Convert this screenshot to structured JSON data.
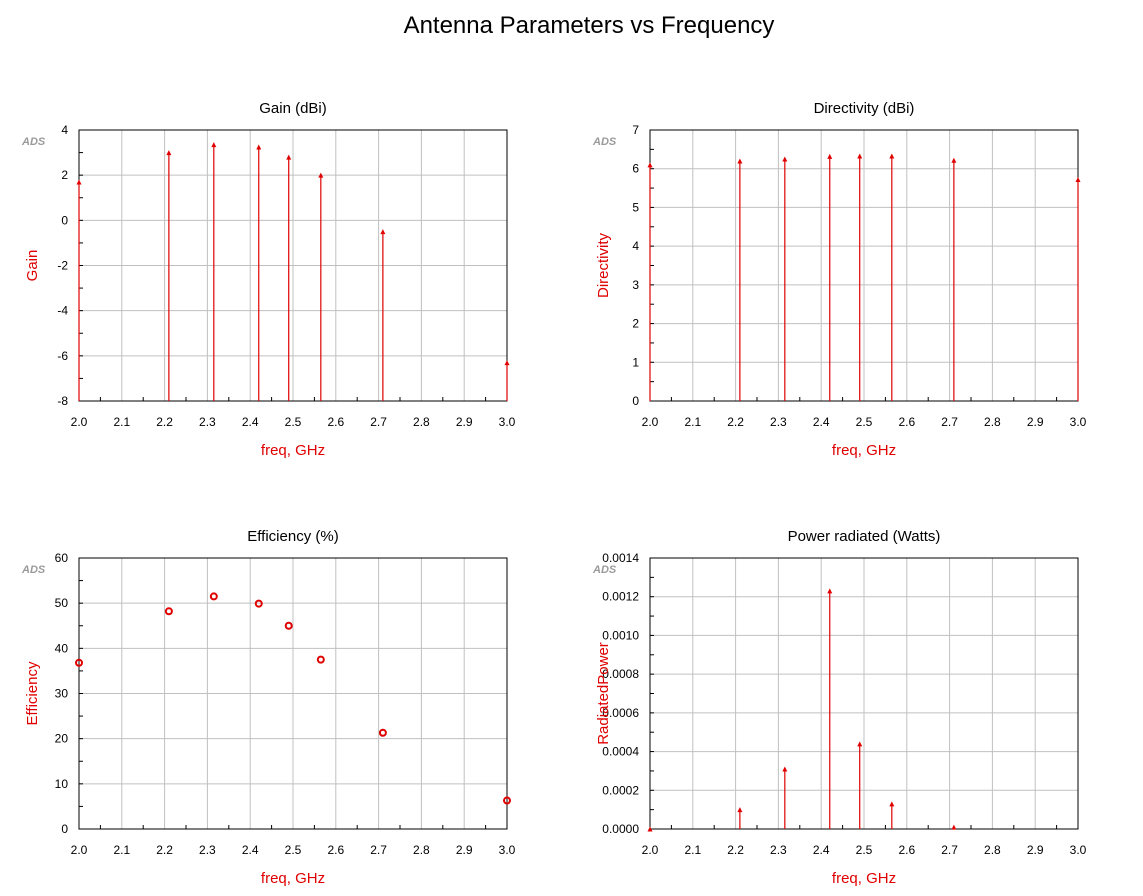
{
  "page": {
    "title": "Antenna Parameters vs Frequency",
    "watermark": "ADS"
  },
  "colors": {
    "data": "#e00000",
    "label": "#e00000",
    "grid": "#c0c0c0",
    "axis": "#000000"
  },
  "chart_data": [
    {
      "type": "stem",
      "title": "Gain (dBi)",
      "xlabel": "freq, GHz",
      "ylabel": "Gain",
      "xlim": [
        2.0,
        3.0
      ],
      "ylim": [
        -8,
        4
      ],
      "xticks": [
        "2.0",
        "2.1",
        "2.2",
        "2.3",
        "2.4",
        "2.5",
        "2.6",
        "2.7",
        "2.8",
        "2.9",
        "3.0"
      ],
      "yticks": [
        "4",
        "2",
        "0",
        "-2",
        "-4",
        "-6",
        "-8"
      ],
      "minor_y_step": 1,
      "marker": "triangle",
      "x": [
        2.0,
        2.21,
        2.315,
        2.42,
        2.49,
        2.565,
        2.71,
        3.0
      ],
      "y": [
        1.7,
        3.0,
        3.35,
        3.25,
        2.8,
        2.0,
        -0.5,
        -6.3
      ]
    },
    {
      "type": "stem",
      "title": "Directivity (dBi)",
      "xlabel": "freq, GHz",
      "ylabel": "Directivity",
      "xlim": [
        2.0,
        3.0
      ],
      "ylim": [
        0,
        7
      ],
      "xticks": [
        "2.0",
        "2.1",
        "2.2",
        "2.3",
        "2.4",
        "2.5",
        "2.6",
        "2.7",
        "2.8",
        "2.9",
        "3.0"
      ],
      "yticks": [
        "7",
        "6",
        "5",
        "4",
        "3",
        "2",
        "1",
        "0"
      ],
      "minor_y_step": 0.5,
      "marker": "triangle",
      "x": [
        2.0,
        2.21,
        2.315,
        2.42,
        2.49,
        2.565,
        2.71,
        3.0
      ],
      "y": [
        6.1,
        6.2,
        6.25,
        6.32,
        6.33,
        6.33,
        6.22,
        5.72
      ]
    },
    {
      "type": "scatter",
      "title": "Efficiency (%)",
      "xlabel": "freq, GHz",
      "ylabel": "Efficiency",
      "xlim": [
        2.0,
        3.0
      ],
      "ylim": [
        0,
        60
      ],
      "xticks": [
        "2.0",
        "2.1",
        "2.2",
        "2.3",
        "2.4",
        "2.5",
        "2.6",
        "2.7",
        "2.8",
        "2.9",
        "3.0"
      ],
      "yticks": [
        "60",
        "50",
        "40",
        "30",
        "20",
        "10",
        "0"
      ],
      "minor_y_step": 5,
      "marker": "circle",
      "x": [
        2.0,
        2.21,
        2.315,
        2.42,
        2.49,
        2.565,
        2.71,
        3.0
      ],
      "y": [
        36.8,
        48.2,
        51.5,
        49.9,
        45.0,
        37.5,
        21.3,
        6.3
      ]
    },
    {
      "type": "stem",
      "title": "Power radiated (Watts)",
      "xlabel": "freq, GHz",
      "ylabel": "RadiatedPower",
      "xlim": [
        2.0,
        3.0
      ],
      "ylim": [
        0,
        0.0014
      ],
      "xticks": [
        "2.0",
        "2.1",
        "2.2",
        "2.3",
        "2.4",
        "2.5",
        "2.6",
        "2.7",
        "2.8",
        "2.9",
        "3.0"
      ],
      "yticks": [
        "0.0014",
        "0.0012",
        "0.0010",
        "0.0008",
        "0.0006",
        "0.0004",
        "0.0002",
        "0.0000"
      ],
      "minor_y_step": 0.0001,
      "marker": "triangle",
      "x": [
        2.0,
        2.21,
        2.315,
        2.42,
        2.49,
        2.565,
        2.71
      ],
      "y": [
        0.0,
        0.0001,
        0.00031,
        0.00123,
        0.00044,
        0.00013,
        1e-05
      ]
    }
  ]
}
